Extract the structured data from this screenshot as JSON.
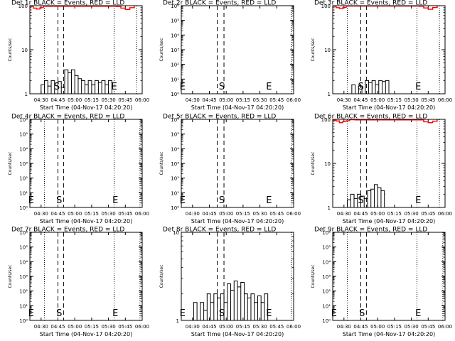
{
  "chart_data": [
    {
      "type": "line",
      "title": "Det 1r BLACK = Events, RED = LLD",
      "xlabel": "Start Time (04-Nov-17 04:20:20)",
      "ylabel": "Counts/sec",
      "xlim": [
        "04:20",
        "06:00"
      ],
      "xticks": [
        "04:30",
        "04:45",
        "05:00",
        "05:15",
        "05:30",
        "05:45",
        "06:00"
      ],
      "yscale": "log",
      "ylim": [
        1,
        100
      ],
      "yticks": [
        "1",
        "10",
        "100"
      ],
      "vlines_dashed": [
        "04:45",
        "04:50"
      ],
      "vlines_dotted": [
        "04:33",
        "05:35",
        "05:55"
      ],
      "labels": {
        "S": "04:44",
        "E": "05:35"
      },
      "series": [
        {
          "color": "#000000",
          "x": [
            "04:30",
            "04:33",
            "04:36",
            "04:39",
            "04:42",
            "04:45",
            "04:48",
            "04:51",
            "04:54",
            "04:57",
            "05:00",
            "05:03",
            "05:06",
            "05:09",
            "05:12",
            "05:15",
            "05:18",
            "05:21",
            "05:24",
            "05:27",
            "05:30",
            "05:33"
          ],
          "y": [
            1.6,
            2,
            1.5,
            2,
            1,
            1.9,
            1.4,
            3.5,
            3,
            3.5,
            2.6,
            2.2,
            2,
            1.6,
            2,
            1.6,
            2,
            1.8,
            2,
            1.6,
            2,
            1.8
          ]
        },
        {
          "color": "#ff0000",
          "x": [
            "04:20",
            "04:23",
            "04:26",
            "04:29",
            "04:32",
            "05:37",
            "05:41",
            "05:45",
            "05:49",
            "05:53"
          ],
          "y": [
            96,
            88,
            84,
            90,
            97,
            96,
            88,
            82,
            90,
            97
          ]
        }
      ]
    },
    {
      "type": "line",
      "title": "Det 2r BLACK = Events, RED = LLD",
      "xlabel": "Start Time (04-Nov-17 04:20:20)",
      "ylabel": "Counts/sec",
      "xlim": [
        "04:20",
        "06:00"
      ],
      "xticks": [
        "04:30",
        "04:45",
        "05:00",
        "05:15",
        "05:30",
        "05:45",
        "06:00"
      ],
      "yscale": "log",
      "ylim": [
        1,
        1000000
      ],
      "yticks": [
        "10⁰",
        "10¹",
        "10²",
        "10³",
        "10⁴",
        "10⁵",
        "10⁶"
      ],
      "vlines_dashed": [
        "04:52",
        "04:58"
      ],
      "vlines_dotted": [
        "05:58"
      ],
      "labels": {
        "E": "04:21",
        "S": "04:56",
        "E2": "05:38"
      },
      "series": []
    },
    {
      "type": "line",
      "title": "Det 3r BLACK = Events, RED = LLD",
      "xlabel": "Start Time (04-Nov-17 04:20:20)",
      "ylabel": "Counts/sec",
      "xlim": [
        "04:20",
        "06:00"
      ],
      "xticks": [
        "04:30",
        "04:45",
        "05:00",
        "05:15",
        "05:30",
        "05:45",
        "06:00"
      ],
      "yscale": "log",
      "ylim": [
        1,
        100
      ],
      "yticks": [
        "1",
        "10",
        "100"
      ],
      "vlines_dashed": [
        "04:45",
        "04:50"
      ],
      "vlines_dotted": [
        "04:33",
        "05:35",
        "05:55"
      ],
      "labels": {
        "S": "04:45",
        "E": "05:36"
      },
      "series": [
        {
          "color": "#000000",
          "x": [
            "04:37",
            "04:40",
            "04:43",
            "04:46",
            "04:49",
            "04:52",
            "04:55",
            "04:58",
            "05:01",
            "05:04",
            "05:07",
            "05:10"
          ],
          "y": [
            1.6,
            1,
            1.5,
            1,
            2,
            1.8,
            2,
            1.6,
            2,
            1.9,
            2,
            1.6
          ]
        },
        {
          "color": "#ff0000",
          "x": [
            "04:20",
            "04:23",
            "04:26",
            "04:29",
            "04:32",
            "05:37",
            "05:41",
            "05:45",
            "05:49",
            "05:53"
          ],
          "y": [
            97,
            90,
            86,
            91,
            98,
            97,
            89,
            83,
            91,
            98
          ]
        }
      ]
    },
    {
      "type": "line",
      "title": "Det 4r BLACK = Events, RED = LLD",
      "xlabel": "Start Time (04-Nov-17 04:20:20)",
      "ylabel": "Counts/sec",
      "xlim": [
        "04:20",
        "06:00"
      ],
      "xticks": [
        "04:30",
        "04:45",
        "05:00",
        "05:15",
        "05:30",
        "05:45",
        "06:00"
      ],
      "yscale": "log",
      "ylim": [
        1,
        1000000
      ],
      "yticks": [
        "10⁰",
        "10¹",
        "10²",
        "10³",
        "10⁴",
        "10⁵",
        "10⁶"
      ],
      "vlines_dashed": [
        "04:45",
        "04:50"
      ],
      "vlines_dotted": [
        "04:33",
        "05:35",
        "05:58"
      ],
      "labels": {
        "E": "04:21",
        "S": "04:46",
        "E2": "05:36"
      },
      "series": []
    },
    {
      "type": "line",
      "title": "Det 5r BLACK = Events, RED = LLD",
      "xlabel": "Start Time (04-Nov-17 04:20:20)",
      "ylabel": "Counts/sec",
      "xlim": [
        "04:20",
        "06:00"
      ],
      "xticks": [
        "04:30",
        "04:45",
        "05:00",
        "05:15",
        "05:30",
        "05:45",
        "06:00"
      ],
      "yscale": "log",
      "ylim": [
        1,
        1000000
      ],
      "yticks": [
        "10⁰",
        "10¹",
        "10²",
        "10³",
        "10⁴",
        "10⁵",
        "10⁶"
      ],
      "vlines_dashed": [
        "04:52",
        "04:58"
      ],
      "vlines_dotted": [
        "05:58"
      ],
      "labels": {
        "E": "04:21",
        "S": "04:56",
        "E2": "05:38"
      },
      "series": []
    },
    {
      "type": "line",
      "title": "Det 6r BLACK = Events, RED = LLD",
      "xlabel": "Start Time (04-Nov-17 04:20:20)",
      "ylabel": "Counts/sec",
      "xlim": [
        "04:20",
        "06:00"
      ],
      "xticks": [
        "04:30",
        "04:45",
        "05:00",
        "05:15",
        "05:30",
        "05:45",
        "06:00"
      ],
      "yscale": "log",
      "ylim": [
        1,
        100
      ],
      "yticks": [
        "1",
        "10",
        "100"
      ],
      "vlines_dashed": [
        "04:45",
        "04:50"
      ],
      "vlines_dotted": [
        "04:33",
        "05:35",
        "05:55"
      ],
      "labels": {
        "S": "04:45",
        "E": "05:36"
      },
      "series": [
        {
          "color": "#000000",
          "x": [
            "04:33",
            "04:36",
            "04:39",
            "04:42",
            "04:45",
            "04:48",
            "04:51",
            "04:54",
            "04:57",
            "05:00",
            "05:03",
            "05:06"
          ],
          "y": [
            1.5,
            2,
            1.6,
            2,
            1.8,
            1.6,
            2.4,
            2.6,
            3.3,
            2.8,
            2.4,
            2
          ]
        },
        {
          "color": "#ff0000",
          "x": [
            "04:20",
            "04:23",
            "04:26",
            "04:29",
            "04:32",
            "04:35",
            "04:40",
            "05:37",
            "05:41",
            "05:45",
            "05:49",
            "05:53"
          ],
          "y": [
            95,
            92,
            84,
            90,
            93,
            98,
            97,
            97,
            88,
            84,
            91,
            98
          ]
        }
      ]
    },
    {
      "type": "line",
      "title": "Det 7r BLACK = Events, RED = LLD",
      "xlabel": "Start Time (04-Nov-17 04:20:20)",
      "ylabel": "Counts/sec",
      "xlim": [
        "04:20",
        "06:00"
      ],
      "xticks": [
        "04:30",
        "04:45",
        "05:00",
        "05:15",
        "05:30",
        "05:45",
        "06:00"
      ],
      "yscale": "log",
      "ylim": [
        1,
        1000000
      ],
      "yticks": [
        "10⁰",
        "10¹",
        "10²",
        "10³",
        "10⁴",
        "10⁵",
        "10⁶"
      ],
      "vlines_dashed": [
        "04:45",
        "04:50"
      ],
      "vlines_dotted": [
        "04:33",
        "05:35",
        "05:58"
      ],
      "labels": {
        "E": "04:21",
        "S": "04:46",
        "E2": "05:36"
      },
      "series": []
    },
    {
      "type": "line",
      "title": "Det 8r BLACK = Events, RED = LLD",
      "xlabel": "Start Time (04-Nov-17 04:20:20)",
      "ylabel": "Counts/sec",
      "xlim": [
        "04:20",
        "06:00"
      ],
      "xticks": [
        "04:30",
        "04:45",
        "05:00",
        "05:15",
        "05:30",
        "05:45",
        "06:00"
      ],
      "yscale": "log",
      "ylim": [
        1,
        10
      ],
      "yticks": [
        "1",
        "10"
      ],
      "vlines_dashed": [
        "04:52",
        "04:58"
      ],
      "vlines_dotted": [
        "05:58"
      ],
      "labels": {
        "E": "04:21",
        "S": "04:56",
        "E2": "05:38"
      },
      "series": [
        {
          "color": "#000000",
          "x": [
            "04:31",
            "04:34",
            "04:37",
            "04:40",
            "04:43",
            "04:46",
            "04:49",
            "04:52",
            "04:55",
            "04:58",
            "05:01",
            "05:04",
            "05:07",
            "05:10",
            "05:13",
            "05:16",
            "05:19",
            "05:22",
            "05:25",
            "05:28",
            "05:31",
            "05:34",
            "05:37"
          ],
          "y": [
            1.6,
            1,
            1.6,
            1.3,
            2,
            1.6,
            2,
            1.8,
            2,
            1.6,
            2.6,
            2.2,
            2.8,
            2.4,
            2.7,
            2,
            1.8,
            2,
            1.6,
            1.9,
            1.6,
            2,
            1.5
          ]
        }
      ]
    },
    {
      "type": "line",
      "title": "Det 9r BLACK = Events, RED = LLD",
      "xlabel": "Start Time (04-Nov-17 04:20:20)",
      "ylabel": "Counts/sec",
      "xlim": [
        "04:20",
        "06:00"
      ],
      "xticks": [
        "04:30",
        "04:45",
        "05:00",
        "05:15",
        "05:30",
        "05:45",
        "06:00"
      ],
      "yscale": "log",
      "ylim": [
        1,
        1000000
      ],
      "yticks": [
        "10⁰",
        "10¹",
        "10²",
        "10³",
        "10⁴",
        "10⁵",
        "10⁶"
      ],
      "vlines_dashed": [
        "04:45",
        "04:50"
      ],
      "vlines_dotted": [
        "04:33",
        "05:35",
        "05:58"
      ],
      "labels": {
        "E": "04:21",
        "S": "04:46",
        "E2": "05:36"
      },
      "series": []
    }
  ]
}
